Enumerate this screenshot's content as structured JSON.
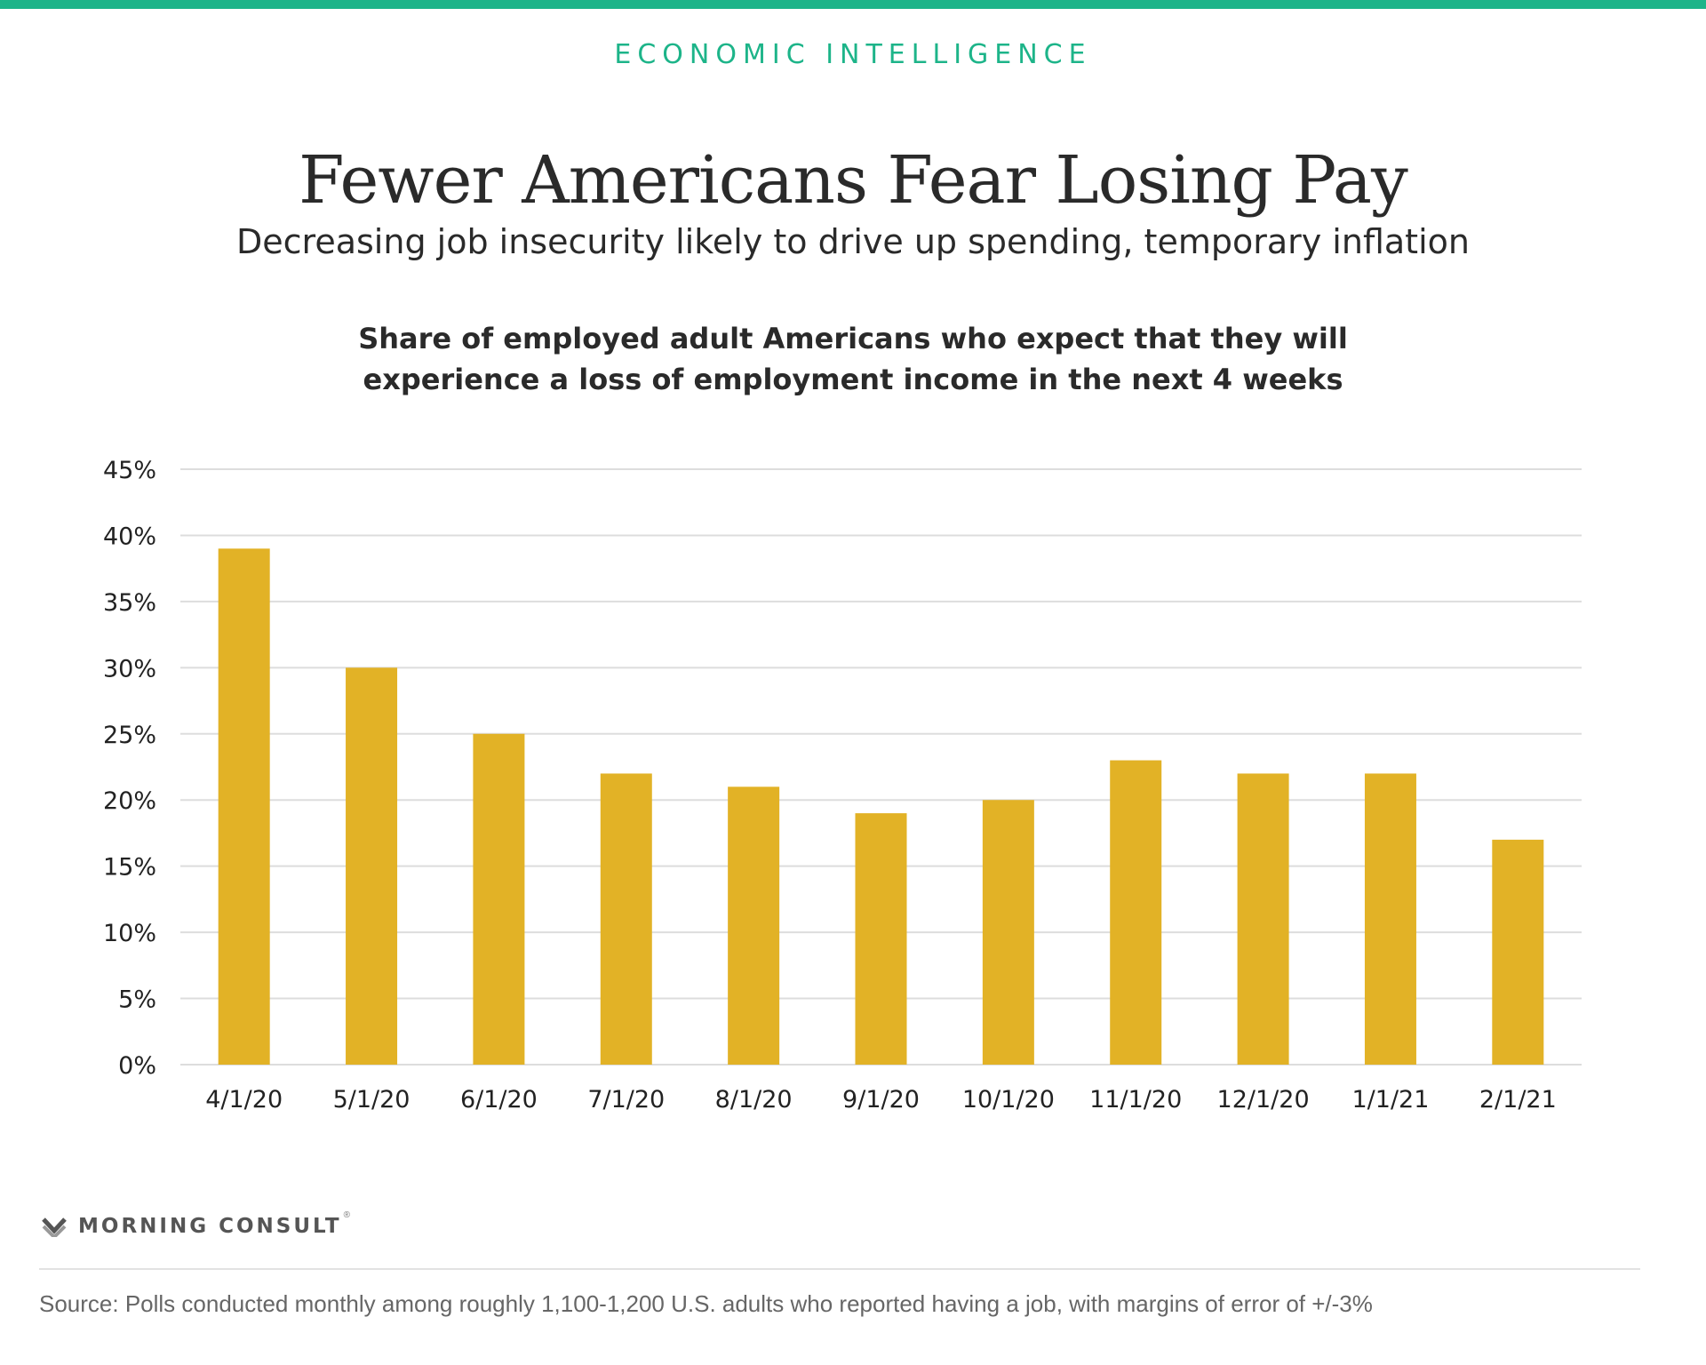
{
  "colors": {
    "accent": "#1db489",
    "bar": "#e2b226",
    "grid": "#dddddd"
  },
  "kicker": "ECONOMIC INTELLIGENCE",
  "title": "Fewer Americans Fear Losing Pay",
  "subtitle": "Decreasing job insecurity likely to drive up spending, temporary inflation",
  "chart_heading": {
    "line1": "Share of employed adult Americans who expect that they will",
    "line2": "experience a loss of employment income in the next 4 weeks"
  },
  "chart_data": {
    "type": "bar",
    "title": "Share of employed adult Americans who expect that they will experience a loss of employment income in the next 4 weeks",
    "categories": [
      "4/1/20",
      "5/1/20",
      "6/1/20",
      "7/1/20",
      "8/1/20",
      "9/1/20",
      "10/1/20",
      "11/1/20",
      "12/1/20",
      "1/1/21",
      "2/1/21"
    ],
    "values": [
      39,
      30,
      25,
      22,
      21,
      19,
      20,
      23,
      22,
      22,
      17
    ],
    "unit": "%",
    "ylim": [
      0,
      45
    ],
    "yticks": [
      0,
      5,
      10,
      15,
      20,
      25,
      30,
      35,
      40,
      45
    ],
    "ytick_labels": [
      "0%",
      "5%",
      "10%",
      "15%",
      "20%",
      "25%",
      "30%",
      "35%",
      "40%",
      "45%"
    ],
    "grid": true,
    "xlabel": "",
    "ylabel": ""
  },
  "logo": {
    "icon": "morning-consult-logo-icon",
    "text": "MORNING CONSULT",
    "mark": "®"
  },
  "source": "Source: Polls conducted monthly among roughly 1,100-1,200 U.S. adults who reported having a job, with margins of error of +/-3%"
}
